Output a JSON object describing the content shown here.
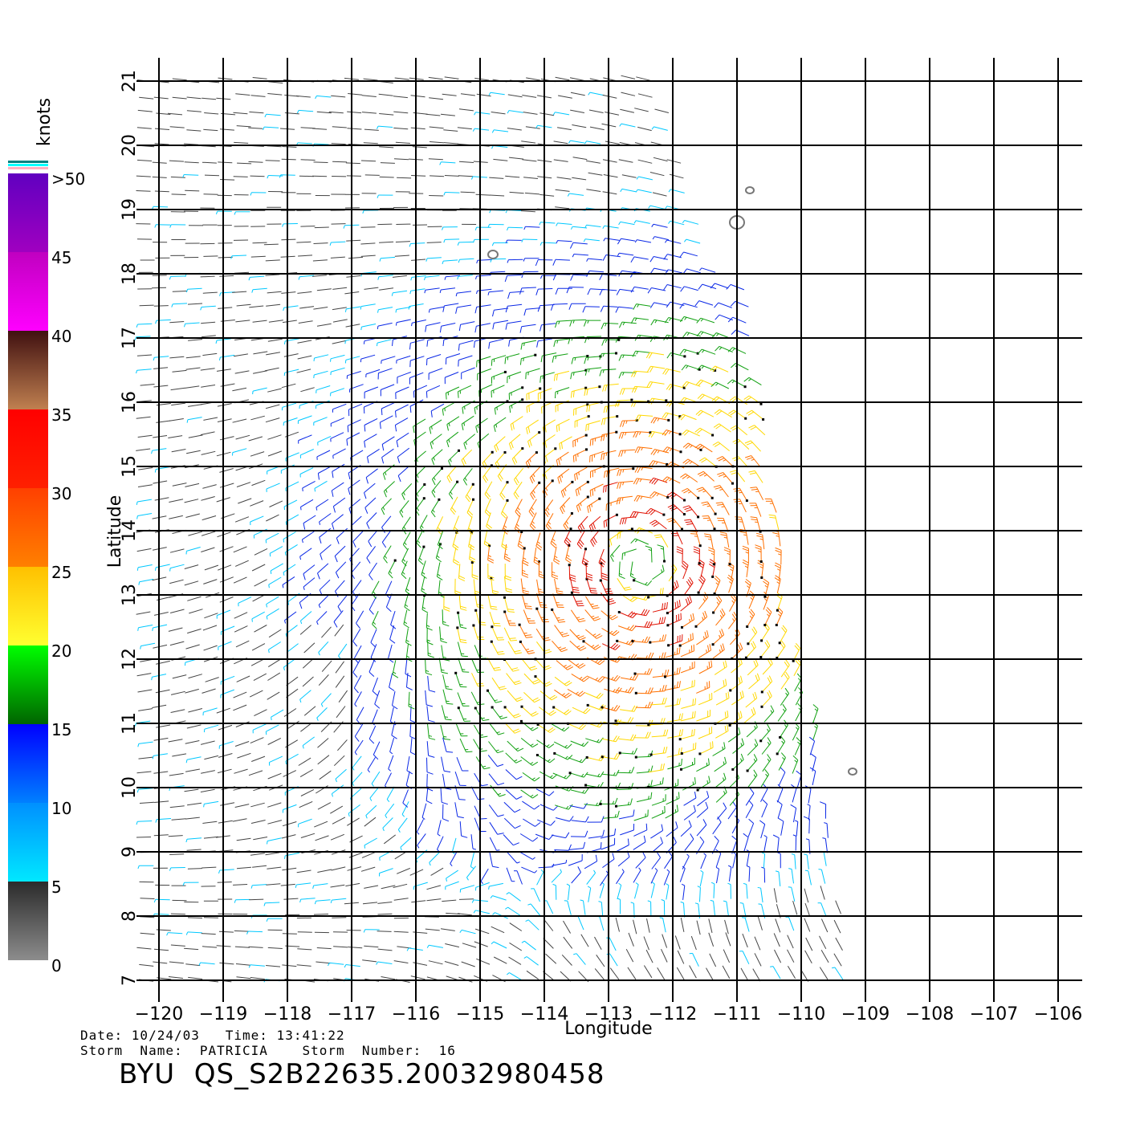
{
  "chart_data": {
    "type": "wind-barb-map",
    "xlabel": "Longitude",
    "ylabel": "Latitude",
    "xlim": [
      -120,
      -106
    ],
    "ylim": [
      7,
      21
    ],
    "x_ticks": [
      "−120",
      "−119",
      "−118",
      "−117",
      "−116",
      "−115",
      "−114",
      "−113",
      "−112",
      "−111",
      "−110",
      "−109",
      "−108",
      "−107",
      "−106"
    ],
    "y_ticks": [
      "7",
      "8",
      "9",
      "10",
      "11",
      "12",
      "13",
      "14",
      "15",
      "16",
      "17",
      "18",
      "19",
      "20",
      "21"
    ],
    "grid": true,
    "storm_center": {
      "lon": -112.5,
      "lat": 13.5
    },
    "colorbar": {
      "unit": "knots",
      "labels": [
        ">50",
        "45",
        "40",
        "35",
        "30",
        "25",
        "20",
        "15",
        "10",
        "5",
        "0"
      ],
      "bands": [
        {
          "from": 0,
          "to": 5,
          "colors": [
            "#8c8c8c",
            "#2a2a2a"
          ]
        },
        {
          "from": 5,
          "to": 10,
          "colors": [
            "#00e8ff",
            "#0090ff"
          ]
        },
        {
          "from": 10,
          "to": 15,
          "colors": [
            "#0080ff",
            "#0000ff"
          ]
        },
        {
          "from": 15,
          "to": 20,
          "colors": [
            "#006400",
            "#00ff00"
          ]
        },
        {
          "from": 20,
          "to": 25,
          "colors": [
            "#ffff30",
            "#ffc000"
          ]
        },
        {
          "from": 25,
          "to": 30,
          "colors": [
            "#ff8000",
            "#ff4000"
          ]
        },
        {
          "from": 30,
          "to": 35,
          "colors": [
            "#ff2000",
            "#ff0000"
          ]
        },
        {
          "from": 35,
          "to": 40,
          "colors": [
            "#c08050",
            "#401010"
          ]
        },
        {
          "from": 40,
          "to": 45,
          "colors": [
            "#ff00ff",
            "#c000c0"
          ]
        },
        {
          "from": 45,
          "to": 50,
          "colors": [
            "#a000c0",
            "#6000c0"
          ]
        }
      ]
    }
  },
  "meta": {
    "date_line": "Date: 10/24/03   Time: 13:41:22",
    "storm_line": "Storm  Name:  PATRICIA    Storm  Number:  16",
    "product_id": "BYU  QS_S2B22635.20032980458"
  }
}
